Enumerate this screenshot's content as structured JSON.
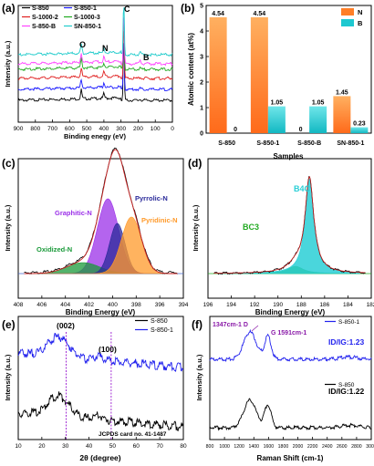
{
  "panels": {
    "a": {
      "letter": "(a)",
      "xlabel": "Binding enegy (eV)",
      "ylabel": "Intensity (a.u.)",
      "ticks": [
        "900",
        "800",
        "700",
        "600",
        "500",
        "400",
        "300",
        "200",
        "100",
        "0"
      ],
      "peaks": {
        "o": "O",
        "n": "N",
        "c": "C",
        "b": "B"
      }
    },
    "b": {
      "letter": "(b)",
      "xlabel": "Samples",
      "ylabel": "Atomic content (at%)",
      "yticks": [
        "0",
        "1",
        "2",
        "3",
        "4",
        "5"
      ]
    },
    "c": {
      "letter": "(c)",
      "xlabel": "Binding Energy (eV)",
      "ylabel": "Intensity (a.u.)",
      "ticks": [
        "408",
        "406",
        "404",
        "402",
        "400",
        "398",
        "396",
        "394"
      ],
      "labels": {
        "graphitic": "Graphitic-N",
        "pyrrolic": "Pyrrolic-N",
        "pyridinic": "Pyridinic-N",
        "oxidized": "Oxidized-N"
      }
    },
    "d": {
      "letter": "(d)",
      "xlabel": "Binding Energy (eV)",
      "ylabel": "Intensity (a.u.)",
      "ticks": [
        "196",
        "194",
        "192",
        "190",
        "188",
        "186",
        "184",
        "182"
      ],
      "labels": {
        "bc3": "BC3",
        "b4c": "B4C"
      }
    },
    "e": {
      "letter": "(e)",
      "xlabel": "2θ (degree)",
      "ylabel": "Intensity (a.u.)",
      "ticks": [
        "10",
        "20",
        "30",
        "40",
        "50",
        "60",
        "70",
        "80"
      ],
      "labels": {
        "p002": "(002)",
        "p100": "(100)",
        "jcpds": "JCPDS card no. 41-1487"
      }
    },
    "f": {
      "letter": "(f)",
      "xlabel": "Raman Shift (cm-1)",
      "ylabel": "Intensity (a.u.)",
      "ticks": [
        "800",
        "1000",
        "1200",
        "1400",
        "1600",
        "1800",
        "2000",
        "2200",
        "2400",
        "2600",
        "2800",
        "3000"
      ],
      "labels": {
        "d": "1347cm-1 D",
        "g": "G 1591cm-1",
        "ratio1": "ID/IG:1.23",
        "ratio2": "ID/IG:1.22"
      }
    }
  },
  "chart_data": [
    {
      "type": "line",
      "panel": "a",
      "series": [
        {
          "name": "S-850",
          "color": "#000000"
        },
        {
          "name": "S-850-1",
          "color": "#1a1aff"
        },
        {
          "name": "S-1000-2",
          "color": "#e02020"
        },
        {
          "name": "S-1000-3",
          "color": "#22aa22"
        },
        {
          "name": "S-850-B",
          "color": "#ff44ff"
        },
        {
          "name": "SN-850-1",
          "color": "#22cccc"
        }
      ],
      "xlim": [
        900,
        0
      ],
      "peaks": [
        {
          "label": "O",
          "x": 532
        },
        {
          "label": "N",
          "x": 400
        },
        {
          "label": "C",
          "x": 284
        },
        {
          "label": "B",
          "x": 188
        }
      ]
    },
    {
      "type": "bar",
      "panel": "b",
      "categories": [
        "S-850",
        "S-850-1",
        "S-850-B",
        "SN-850-1"
      ],
      "series": [
        {
          "name": "N",
          "color": "#ff7f27",
          "values": [
            4.54,
            4.54,
            0,
            1.45
          ],
          "labels": [
            "4.54",
            "4.54",
            "0",
            "1.45"
          ]
        },
        {
          "name": "B",
          "color": "#1ec8d0",
          "values": [
            0,
            1.05,
            1.05,
            0.23
          ],
          "labels": [
            "0",
            "1.05",
            "1.05",
            "0.23"
          ]
        }
      ],
      "ylim": [
        0,
        5
      ]
    },
    {
      "type": "area",
      "panel": "c",
      "xlim": [
        408,
        394
      ],
      "components": [
        {
          "name": "Graphitic-N",
          "center": 400.4,
          "color": "#9b30e8"
        },
        {
          "name": "Pyrrolic-N",
          "center": 399.6,
          "color": "#2a2a9a"
        },
        {
          "name": "Pyridinic-N",
          "center": 398.4,
          "color": "#ff9a2a"
        },
        {
          "name": "Oxidized-N",
          "center": 402.5,
          "color": "#1a9a3a"
        }
      ]
    },
    {
      "type": "area",
      "panel": "d",
      "xlim": [
        196,
        182
      ],
      "components": [
        {
          "name": "B4C",
          "center": 187.3,
          "color": "#2acfd6"
        },
        {
          "name": "BC3",
          "center": 188.5,
          "color": "#22aa22"
        }
      ]
    },
    {
      "type": "line",
      "panel": "e",
      "xlim": [
        10,
        80
      ],
      "series": [
        {
          "name": "S-850",
          "color": "#000000"
        },
        {
          "name": "S-850-1",
          "color": "#2222ee"
        }
      ],
      "reference_lines": [
        30.3,
        49.4
      ]
    },
    {
      "type": "line",
      "panel": "f",
      "xlim": [
        800,
        3000
      ],
      "series": [
        {
          "name": "S-850-1",
          "color": "#2222ee"
        },
        {
          "name": "S-850",
          "color": "#000000"
        }
      ]
    }
  ]
}
